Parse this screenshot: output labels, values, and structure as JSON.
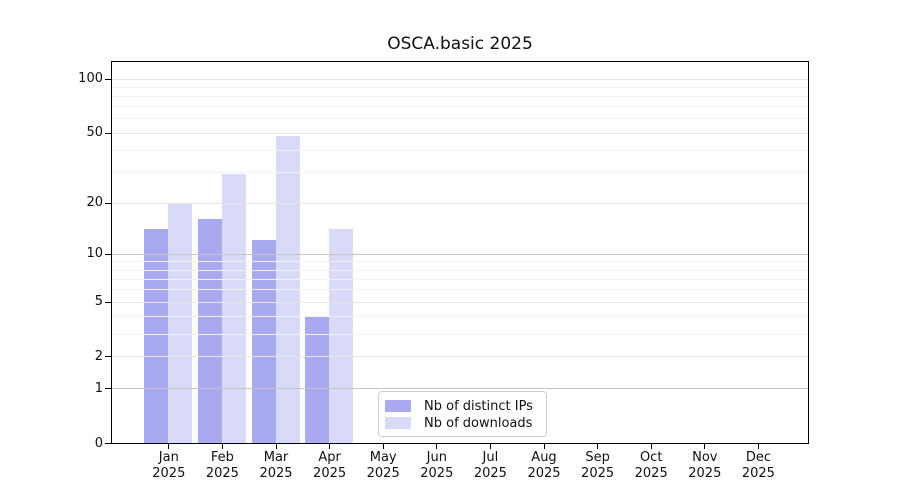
{
  "page": {
    "background": "#ffffff"
  },
  "chart_data": {
    "type": "bar",
    "title": "OSCA.basic 2025",
    "categories": [
      "Jan",
      "Feb",
      "Mar",
      "Apr",
      "May",
      "Jun",
      "Jul",
      "Aug",
      "Sep",
      "Oct",
      "Nov",
      "Dec"
    ],
    "category_year_label": "2025",
    "series": [
      {
        "name": "Nb of distinct IPs",
        "color": "#a9a9f0",
        "values": [
          14,
          16,
          12,
          4,
          0,
          0,
          0,
          0,
          0,
          0,
          0,
          0
        ]
      },
      {
        "name": "Nb of downloads",
        "color": "#d9d9f8",
        "values": [
          20,
          29,
          48,
          14,
          0,
          0,
          0,
          0,
          0,
          0,
          0,
          0
        ]
      }
    ],
    "xlabel": "",
    "ylabel": "",
    "y_ticks": [
      0,
      1,
      2,
      5,
      10,
      20,
      50,
      100
    ],
    "y_minor_gridlines": [
      3,
      4,
      6,
      7,
      8,
      9,
      30,
      40,
      60,
      70,
      80,
      90
    ],
    "y_dark_gridlines": [
      1,
      10
    ],
    "y_scale": "log10(1+v)",
    "ylim": [
      0,
      125
    ],
    "grid": "on",
    "legend_position": "inside-bottom-center"
  },
  "legend": {
    "items": [
      {
        "label": "Nb of distinct IPs",
        "color": "#a9a9f0"
      },
      {
        "label": "Nb of downloads",
        "color": "#d9d9f8"
      }
    ]
  },
  "colors": {
    "bar_ips": "#a9a9f0",
    "bar_downloads": "#d9d9f8",
    "grid_decade": "#c4c4c4",
    "grid_major": "#e6e6e6",
    "grid_minor": "#f2f2f2",
    "axis": "#000000",
    "legend_border": "#cccccc",
    "text": "#111111"
  }
}
